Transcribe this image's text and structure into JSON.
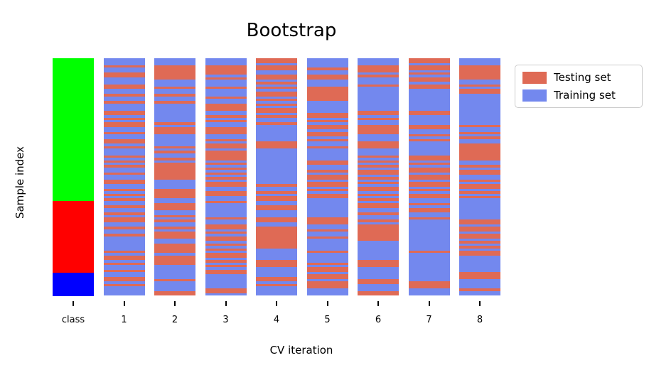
{
  "chart_data": {
    "type": "heatmap",
    "title": "Bootstrap",
    "xlabel": "CV iteration",
    "ylabel": "Sample index",
    "x_tick_labels": [
      "class",
      "1",
      "2",
      "3",
      "4",
      "5",
      "6",
      "7",
      "8"
    ],
    "n_samples_per_column": 100,
    "grid": false,
    "colors": {
      "testing": "#DF6A55",
      "training": "#7388EE",
      "class_0": "#00FF00",
      "class_1": "#FF0000",
      "class_2": "#0000FF",
      "tick": "#000000",
      "legend_border": "#cccccc"
    },
    "class_column": {
      "label": "class",
      "segments": [
        {
          "name": "class 0",
          "color_key": "class_0",
          "count": 60
        },
        {
          "name": "class 1",
          "color_key": "class_1",
          "count": 30
        },
        {
          "name": "class 2",
          "color_key": "class_2",
          "count": 10
        }
      ]
    },
    "pattern_encoding": {
      "1": "Testing set",
      "0": "Training set"
    },
    "cv_columns": [
      {
        "label": "1",
        "pattern": "0001001100011001001000110101100100110100010101001001100101010010010110010010000001011010010011010000"
      },
      {
        "label": "2",
        "pattern": "0001111110001001001000000001011100000101001011111110000111100111001010010111001111011110000001000011"
      },
      {
        "label": "3",
        "pattern": "0001111010001000100111001010011100101101111010101010110011001000000100110101101010110101011000000110"
      },
      {
        "label": "4",
        "pattern": "1101100110101011010101101001000000011100000000000000010010110011000110011111111100000111000011010000"
      },
      {
        "label": "5",
        "pattern": "0000100110001111110000011010110110100100000110010110110101100000000111001001000001000010110110111000"
      },
      {
        "label": "6",
        "pattern": "0001110100010000000000110100111100011100010101011010101101010110010010111111100000000111000001100011"
      },
      {
        "label": "7",
        "pattern": "1101101011011000000000110000110010100000011010110110110101100101100100000000000001000000000000111000"
      },
      {
        "label": "8",
        "pattern": "0001111110010110000000000000100101001111111001011001011010100000000011011011010101100000001110000100"
      }
    ],
    "legend": {
      "position": "upper right",
      "entries": [
        {
          "label": "Testing set",
          "color_key": "testing"
        },
        {
          "label": "Training set",
          "color_key": "training"
        }
      ]
    }
  }
}
